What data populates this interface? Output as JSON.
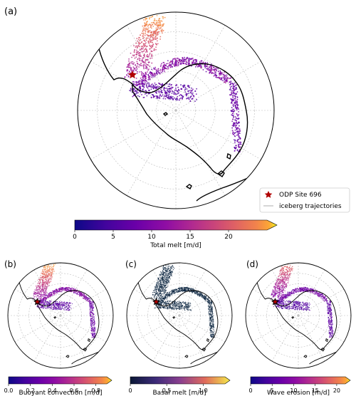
{
  "chart_data": [
    {
      "panel": "(a)",
      "type": "scatter",
      "projection": "south-polar-stereographic",
      "title": "",
      "colorbar": {
        "label": "Total melt [m/d]",
        "ticks": [
          "0",
          "5",
          "10",
          "15",
          "20"
        ],
        "range": [
          0,
          25
        ],
        "extend": "max",
        "colormap": "plasma"
      },
      "legend": {
        "placement": "lower-right",
        "entries": [
          {
            "label": "ODP Site 696",
            "marker": "star",
            "color": "#b00000"
          },
          {
            "label": "iceberg trajectories",
            "marker": "line",
            "color": "#bbbbbb"
          }
        ]
      },
      "marker_site": {
        "lon": -42.9,
        "lat": -61.8,
        "name": "ODP Site 696"
      },
      "grid": true
    },
    {
      "panel": "(b)",
      "type": "scatter",
      "projection": "south-polar-stereographic",
      "colorbar": {
        "label": "Buoyant convection [m/d]",
        "ticks": [
          "0.0",
          "0.2",
          "0.4",
          "0.6",
          "0.8"
        ],
        "range": [
          0,
          0.9
        ],
        "extend": "max",
        "colormap": "plasma"
      },
      "grid": true
    },
    {
      "panel": "(c)",
      "type": "scatter",
      "projection": "south-polar-stereographic",
      "colorbar": {
        "label": "Basal melt [m/d]",
        "ticks": [
          "0",
          "0.5",
          "1.0"
        ],
        "range": [
          0,
          1.3
        ],
        "extend": "max",
        "colormap": "plasma"
      },
      "grid": true
    },
    {
      "panel": "(d)",
      "type": "scatter",
      "projection": "south-polar-stereographic",
      "colorbar": {
        "label": "Wave erosion [m/d]",
        "ticks": [
          "0",
          "5",
          "10",
          "15",
          "20"
        ],
        "range": [
          0,
          22
        ],
        "extend": "max",
        "colormap": "plasma"
      },
      "grid": true
    }
  ]
}
